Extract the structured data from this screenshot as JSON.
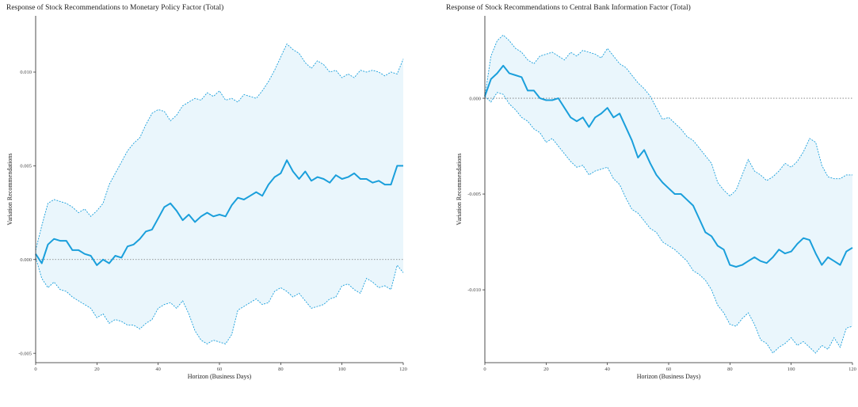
{
  "chart_data": [
    {
      "type": "line",
      "title": "Response of Stock Recommendations to Monetary Policy Factor (Total)",
      "xlabel": "Horizon (Business Days)",
      "ylabel": "Variation Recommendations",
      "xlim": [
        0,
        120
      ],
      "ylim": [
        -0.0055,
        0.013
      ],
      "xticks": [
        0,
        20,
        40,
        60,
        80,
        100,
        120
      ],
      "yticks": [
        -0.005,
        0.0,
        0.005,
        0.01
      ],
      "ytick_labels": [
        "-0.005",
        "0.000",
        "0.005",
        "0.010"
      ],
      "grid": false,
      "zero_line": true,
      "colors": {
        "estimate": "#1a9fdb",
        "band_fill": "#eaf6fc",
        "band_line": "#1a9fdb",
        "zero_line": "#777777"
      },
      "series": [
        {
          "role": "estimate",
          "x": [
            0,
            2,
            4,
            6,
            8,
            10,
            12,
            14,
            16,
            18,
            20,
            22,
            24,
            26,
            28,
            30,
            32,
            34,
            36,
            38,
            40,
            42,
            44,
            46,
            48,
            50,
            52,
            54,
            56,
            58,
            60,
            62,
            64,
            66,
            68,
            70,
            72,
            74,
            76,
            78,
            80,
            82,
            84,
            86,
            88,
            90,
            92,
            94,
            96,
            98,
            100,
            102,
            104,
            106,
            108,
            110,
            112,
            114,
            116,
            118,
            120
          ],
          "y": [
            0.0003,
            -0.0002,
            0.0008,
            0.0011,
            0.001,
            0.001,
            0.0005,
            0.0005,
            0.0003,
            0.0002,
            -0.0003,
            0.0,
            -0.0002,
            0.0002,
            0.0001,
            0.0007,
            0.0008,
            0.0011,
            0.0015,
            0.0016,
            0.0022,
            0.0028,
            0.003,
            0.0026,
            0.0021,
            0.0024,
            0.002,
            0.0023,
            0.0025,
            0.0023,
            0.0024,
            0.0023,
            0.0029,
            0.0033,
            0.0032,
            0.0034,
            0.0036,
            0.0034,
            0.004,
            0.0044,
            0.0046,
            0.0053,
            0.0047,
            0.0043,
            0.0047,
            0.0042,
            0.0044,
            0.0043,
            0.0041,
            0.0045,
            0.0043,
            0.0044,
            0.0046,
            0.0043,
            0.0043,
            0.0041,
            0.0042,
            0.004,
            0.004,
            0.005,
            0.005
          ]
        },
        {
          "role": "upper",
          "x": [
            0,
            2,
            4,
            6,
            8,
            10,
            12,
            14,
            16,
            18,
            20,
            22,
            24,
            26,
            28,
            30,
            32,
            34,
            36,
            38,
            40,
            42,
            44,
            46,
            48,
            50,
            52,
            54,
            56,
            58,
            60,
            62,
            64,
            66,
            68,
            70,
            72,
            74,
            76,
            78,
            80,
            82,
            84,
            86,
            88,
            90,
            92,
            94,
            96,
            98,
            100,
            102,
            104,
            106,
            108,
            110,
            112,
            114,
            116,
            118,
            120
          ],
          "y": [
            0.0005,
            0.0018,
            0.003,
            0.0032,
            0.0031,
            0.003,
            0.0028,
            0.0025,
            0.0027,
            0.0023,
            0.0026,
            0.003,
            0.004,
            0.0046,
            0.0052,
            0.0058,
            0.0062,
            0.0065,
            0.0072,
            0.0078,
            0.008,
            0.0079,
            0.0074,
            0.0077,
            0.0082,
            0.0084,
            0.0086,
            0.0085,
            0.0089,
            0.0087,
            0.009,
            0.0085,
            0.0086,
            0.0084,
            0.0088,
            0.0087,
            0.0086,
            0.009,
            0.0095,
            0.0101,
            0.0108,
            0.0115,
            0.0112,
            0.011,
            0.0105,
            0.0102,
            0.0106,
            0.0104,
            0.01,
            0.0101,
            0.0097,
            0.0099,
            0.0097,
            0.0101,
            0.01,
            0.0101,
            0.01,
            0.0098,
            0.01,
            0.0099,
            0.0107
          ]
        },
        {
          "role": "lower",
          "x": [
            0,
            2,
            4,
            6,
            8,
            10,
            12,
            14,
            16,
            18,
            20,
            22,
            24,
            26,
            28,
            30,
            32,
            34,
            36,
            38,
            40,
            42,
            44,
            46,
            48,
            50,
            52,
            54,
            56,
            58,
            60,
            62,
            64,
            66,
            68,
            70,
            72,
            74,
            76,
            78,
            80,
            82,
            84,
            86,
            88,
            90,
            92,
            94,
            96,
            98,
            100,
            102,
            104,
            106,
            108,
            110,
            112,
            114,
            116,
            118,
            120
          ],
          "y": [
            0.0001,
            -0.001,
            -0.0015,
            -0.0012,
            -0.0016,
            -0.0017,
            -0.002,
            -0.0022,
            -0.0024,
            -0.0026,
            -0.0031,
            -0.0029,
            -0.0034,
            -0.0032,
            -0.0033,
            -0.0035,
            -0.0035,
            -0.0037,
            -0.0034,
            -0.0032,
            -0.0026,
            -0.0024,
            -0.0023,
            -0.0026,
            -0.0022,
            -0.0029,
            -0.0038,
            -0.0043,
            -0.0045,
            -0.0043,
            -0.0044,
            -0.0045,
            -0.004,
            -0.0027,
            -0.0025,
            -0.0023,
            -0.0021,
            -0.0024,
            -0.0023,
            -0.0017,
            -0.0015,
            -0.0017,
            -0.002,
            -0.0018,
            -0.0022,
            -0.0026,
            -0.0025,
            -0.0024,
            -0.0021,
            -0.002,
            -0.0014,
            -0.0013,
            -0.0016,
            -0.0018,
            -0.001,
            -0.0012,
            -0.0015,
            -0.0014,
            -0.0016,
            -0.0003,
            -0.0007
          ]
        }
      ]
    },
    {
      "type": "line",
      "title": "Response of Stock Recommendations to Central Bank Information Factor (Total)",
      "xlabel": "Horizon (Business Days)",
      "ylabel": "Variation Recommendations",
      "xlim": [
        0,
        120
      ],
      "ylim": [
        -0.0138,
        0.0043
      ],
      "xticks": [
        0,
        20,
        40,
        60,
        80,
        100,
        120
      ],
      "yticks": [
        -0.01,
        -0.005,
        0.0
      ],
      "ytick_labels": [
        "-0.010",
        "-0.005",
        "0.000"
      ],
      "grid": false,
      "zero_line": true,
      "colors": {
        "estimate": "#1a9fdb",
        "band_fill": "#eaf6fc",
        "band_line": "#1a9fdb",
        "zero_line": "#777777"
      },
      "series": [
        {
          "role": "estimate",
          "x": [
            0,
            2,
            4,
            6,
            8,
            10,
            12,
            14,
            16,
            18,
            20,
            22,
            24,
            26,
            28,
            30,
            32,
            34,
            36,
            38,
            40,
            42,
            44,
            46,
            48,
            50,
            52,
            54,
            56,
            58,
            60,
            62,
            64,
            66,
            68,
            70,
            72,
            74,
            76,
            78,
            80,
            82,
            84,
            86,
            88,
            90,
            92,
            94,
            96,
            98,
            100,
            102,
            104,
            106,
            108,
            110,
            112,
            114,
            116,
            118,
            120
          ],
          "y": [
            0.0001,
            0.001,
            0.0013,
            0.0017,
            0.0013,
            0.0012,
            0.0011,
            0.0004,
            0.0004,
            0.0,
            -0.0001,
            -0.0001,
            0.0,
            -0.0005,
            -0.001,
            -0.0012,
            -0.001,
            -0.0015,
            -0.001,
            -0.0008,
            -0.0005,
            -0.001,
            -0.0008,
            -0.0015,
            -0.0022,
            -0.0031,
            -0.0027,
            -0.0034,
            -0.004,
            -0.0044,
            -0.0047,
            -0.005,
            -0.005,
            -0.0053,
            -0.0056,
            -0.0063,
            -0.007,
            -0.0072,
            -0.0077,
            -0.0079,
            -0.0087,
            -0.0088,
            -0.0087,
            -0.0085,
            -0.0083,
            -0.0085,
            -0.0086,
            -0.0083,
            -0.0079,
            -0.0081,
            -0.008,
            -0.0076,
            -0.0073,
            -0.0074,
            -0.0081,
            -0.0087,
            -0.0083,
            -0.0085,
            -0.0087,
            -0.008,
            -0.0078
          ]
        },
        {
          "role": "upper",
          "x": [
            0,
            2,
            4,
            6,
            8,
            10,
            12,
            14,
            16,
            18,
            20,
            22,
            24,
            26,
            28,
            30,
            32,
            34,
            36,
            38,
            40,
            42,
            44,
            46,
            48,
            50,
            52,
            54,
            56,
            58,
            60,
            62,
            64,
            66,
            68,
            70,
            72,
            74,
            76,
            78,
            80,
            82,
            84,
            86,
            88,
            90,
            92,
            94,
            96,
            98,
            100,
            102,
            104,
            106,
            108,
            110,
            112,
            114,
            116,
            118,
            120
          ],
          "y": [
            0.0001,
            0.0022,
            0.003,
            0.0033,
            0.003,
            0.0026,
            0.0024,
            0.002,
            0.0018,
            0.0022,
            0.0023,
            0.0024,
            0.0022,
            0.002,
            0.0024,
            0.0022,
            0.0025,
            0.0024,
            0.0023,
            0.0021,
            0.0026,
            0.0022,
            0.0018,
            0.0016,
            0.0012,
            0.0008,
            0.0005,
            0.0001,
            -0.0005,
            -0.0011,
            -0.001,
            -0.0013,
            -0.0016,
            -0.002,
            -0.0022,
            -0.0026,
            -0.003,
            -0.0034,
            -0.0044,
            -0.0048,
            -0.0051,
            -0.0048,
            -0.004,
            -0.0032,
            -0.0038,
            -0.004,
            -0.0043,
            -0.0041,
            -0.0038,
            -0.0034,
            -0.0036,
            -0.0033,
            -0.0028,
            -0.0021,
            -0.0023,
            -0.0035,
            -0.0041,
            -0.0042,
            -0.0042,
            -0.004,
            -0.004
          ]
        },
        {
          "role": "lower",
          "x": [
            0,
            2,
            4,
            6,
            8,
            10,
            12,
            14,
            16,
            18,
            20,
            22,
            24,
            26,
            28,
            30,
            32,
            34,
            36,
            38,
            40,
            42,
            44,
            46,
            48,
            50,
            52,
            54,
            56,
            58,
            60,
            62,
            64,
            66,
            68,
            70,
            72,
            74,
            76,
            78,
            80,
            82,
            84,
            86,
            88,
            90,
            92,
            94,
            96,
            98,
            100,
            102,
            104,
            106,
            108,
            110,
            112,
            114,
            116,
            118,
            120
          ],
          "y": [
            0.0001,
            -0.0002,
            0.0003,
            0.0002,
            -0.0003,
            -0.0006,
            -0.001,
            -0.0012,
            -0.0016,
            -0.0018,
            -0.0023,
            -0.0021,
            -0.0025,
            -0.0029,
            -0.0033,
            -0.0036,
            -0.0035,
            -0.004,
            -0.0038,
            -0.0037,
            -0.0036,
            -0.0042,
            -0.0045,
            -0.0052,
            -0.0058,
            -0.006,
            -0.0064,
            -0.0068,
            -0.007,
            -0.0075,
            -0.0077,
            -0.0079,
            -0.0082,
            -0.0085,
            -0.009,
            -0.0092,
            -0.0095,
            -0.01,
            -0.0108,
            -0.0112,
            -0.0118,
            -0.0119,
            -0.0115,
            -0.0112,
            -0.0118,
            -0.0126,
            -0.0128,
            -0.0133,
            -0.013,
            -0.0128,
            -0.0125,
            -0.0129,
            -0.0127,
            -0.013,
            -0.0133,
            -0.0129,
            -0.0131,
            -0.0125,
            -0.013,
            -0.012,
            -0.0119
          ]
        }
      ]
    }
  ]
}
